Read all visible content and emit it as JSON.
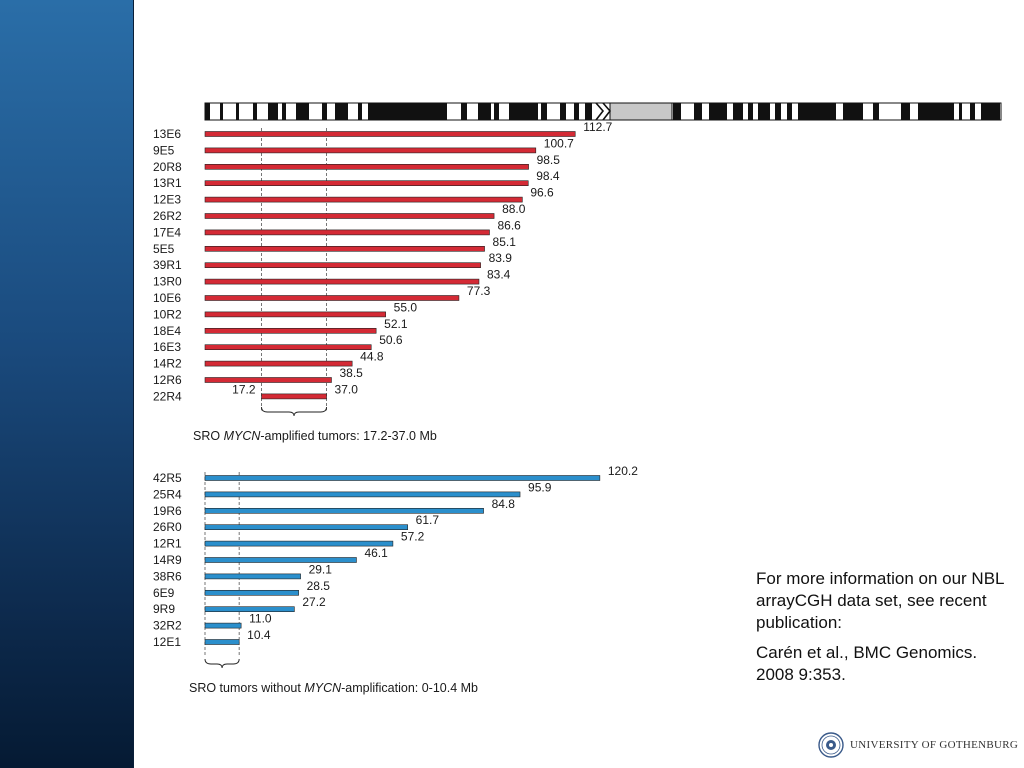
{
  "chart_data": [
    {
      "type": "bar",
      "orientation": "horizontal",
      "color": "#d42a35",
      "categories": [
        "13E6",
        "9E5",
        "20R8",
        "13R1",
        "12E3",
        "26R2",
        "17E4",
        "5E5",
        "39R1",
        "13R0",
        "10E6",
        "10R2",
        "18E4",
        "16E3",
        "14R2",
        "12R6",
        "22R4"
      ],
      "values": [
        112.7,
        100.7,
        98.5,
        98.4,
        96.6,
        88.0,
        86.6,
        85.1,
        83.9,
        83.4,
        77.3,
        55.0,
        52.1,
        50.6,
        44.8,
        38.5,
        37.0
      ],
      "value_labels": [
        "112.7",
        "100.7",
        "98.5",
        "98.4",
        "96.6",
        "88.0",
        "86.6",
        "85.1",
        "83.9",
        "83.4",
        "77.3",
        "55.0",
        "52.1",
        "50.6",
        "44.8",
        "38.5",
        "37.0"
      ],
      "starts": [
        0,
        0,
        0,
        0,
        0,
        0,
        0,
        0,
        0,
        0,
        0,
        0,
        0,
        0,
        0,
        0,
        17.2
      ],
      "start_labels": [
        "",
        "",
        "",
        "",
        "",
        "",
        "",
        "",
        "",
        "",
        "",
        "",
        "",
        "",
        "",
        "",
        "17.2"
      ],
      "sro_range": [
        17.2,
        37.0
      ],
      "caption_pre": "SRO ",
      "caption_italic": "MYCN",
      "caption_post": "-amplified tumors: 17.2-37.0 Mb"
    },
    {
      "type": "bar",
      "orientation": "horizontal",
      "color": "#2b8fcc",
      "categories": [
        "42R5",
        "25R4",
        "19R6",
        "26R0",
        "12R1",
        "14R9",
        "38R6",
        "6E9",
        "9R9",
        "32R2",
        "12E1"
      ],
      "values": [
        120.2,
        95.9,
        84.8,
        61.7,
        57.2,
        46.1,
        29.1,
        28.5,
        27.2,
        11.0,
        10.4
      ],
      "value_labels": [
        "120.2",
        "95.9",
        "84.8",
        "61.7",
        "57.2",
        "46.1",
        "29.1",
        "28.5",
        "27.2",
        "11.0",
        "10.4"
      ],
      "starts": [
        0,
        0,
        0,
        0,
        0,
        0,
        0,
        0,
        0,
        0,
        0
      ],
      "sro_range": [
        0,
        10.4
      ],
      "caption_pre": "SRO tumors without ",
      "caption_italic": "MYCN",
      "caption_post": "-amplification: 0-10.4 Mb"
    }
  ],
  "ideogram": {
    "color_dark": "#111111",
    "color_centromere": "#c8c8c8"
  },
  "info": {
    "line1": "For more information on our NBL arrayCGH data set, see recent publication:",
    "line2": "Carén et al., BMC Genomics. 2008 9:353."
  },
  "logo": {
    "text": "UNIVERSITY OF GOTHENBURG",
    "icon": "university-seal-icon"
  }
}
